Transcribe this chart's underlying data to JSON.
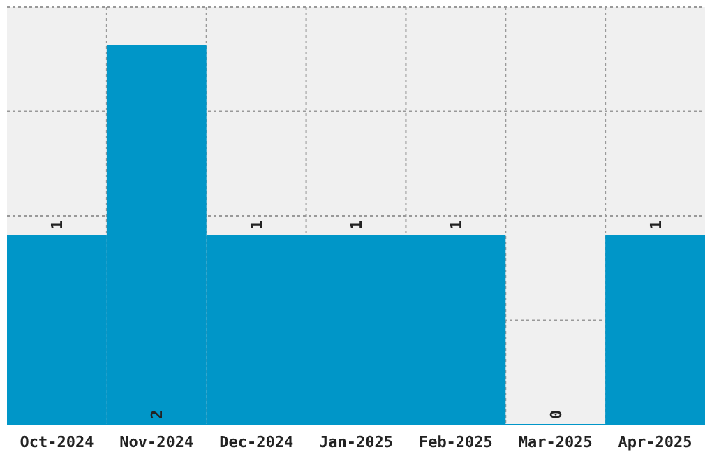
{
  "chart_data": {
    "type": "bar",
    "categories": [
      "Oct-2024",
      "Nov-2024",
      "Dec-2024",
      "Jan-2025",
      "Feb-2025",
      "Mar-2025",
      "Apr-2025"
    ],
    "values": [
      1,
      2,
      1,
      1,
      1,
      0,
      1
    ],
    "color": "#0096c8",
    "ylim": [
      0,
      2.2
    ],
    "yticks": [
      {
        "value": 0.55,
        "label": null
      },
      {
        "value": 1.1,
        "label": null
      },
      {
        "value": 1.65,
        "label": null
      },
      {
        "value": 2.2,
        "label": null
      }
    ],
    "tick_labels": "x",
    "grid": true,
    "data_labels": true
  }
}
